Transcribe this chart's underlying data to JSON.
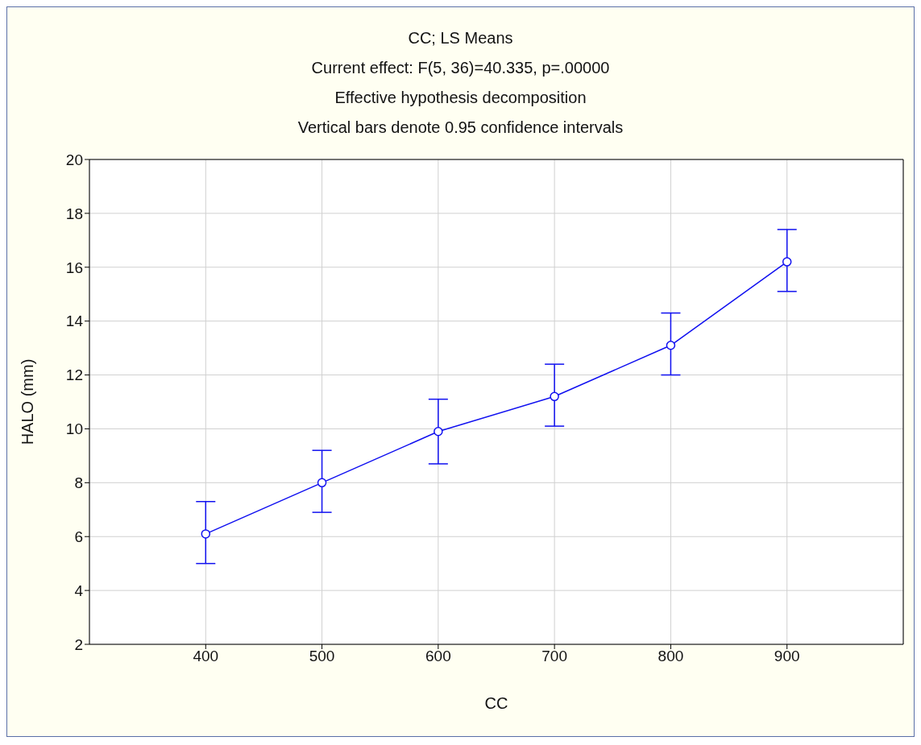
{
  "chart_data": {
    "type": "line",
    "title": "CC; LS Means",
    "subtitle": "Current effect: F(5, 36)=40.335, p=.00000",
    "annotations": [
      "Effective hypothesis decomposition",
      "Vertical bars denote 0.95 confidence intervals"
    ],
    "xlabel": "CC",
    "ylabel": "HALO (mm)",
    "x": [
      400,
      500,
      600,
      700,
      800,
      900
    ],
    "series": [
      {
        "color": "#1010f0",
        "values": [
          6.1,
          8.0,
          9.9,
          11.2,
          13.1,
          16.2
        ],
        "errors": [
          [
            5.0,
            7.3
          ],
          [
            6.9,
            9.2
          ],
          [
            8.7,
            11.1
          ],
          [
            10.1,
            12.4
          ],
          [
            12.0,
            14.3
          ],
          [
            15.1,
            17.4
          ]
        ]
      }
    ],
    "xlim": [
      300,
      1000
    ],
    "xticks": [
      400,
      500,
      600,
      700,
      800,
      900
    ],
    "ylim": [
      2,
      20
    ],
    "yticks": [
      2,
      4,
      6,
      8,
      10,
      12,
      14,
      16,
      18,
      20
    ],
    "grid": true,
    "marker": "circle",
    "line_style": "solid"
  }
}
